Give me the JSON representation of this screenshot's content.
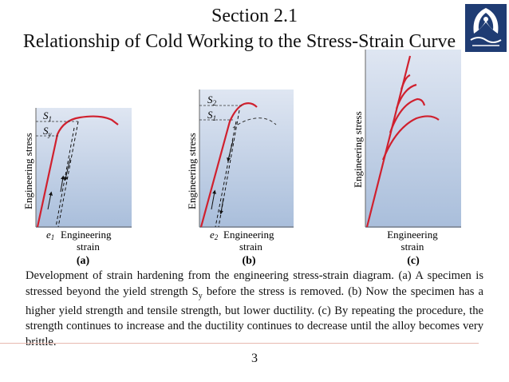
{
  "header": {
    "section": "Section 2.1",
    "title": "Relationship of Cold Working to the Stress-Strain Curve"
  },
  "logo": {
    "icon": "university-seal-icon",
    "color": "#1f3c73"
  },
  "figures": {
    "a": {
      "ylabel": "Engineering stress",
      "xlabel_line1": "Engineering",
      "xlabel_line2": "strain",
      "e_label": "e",
      "e_sub": "1",
      "s1_label": "S",
      "s1_sub": "1",
      "sy_label": "S",
      "sy_sub": "y",
      "panel_label": "(a)"
    },
    "b": {
      "ylabel": "Engineering stress",
      "xlabel_line1": "Engineering",
      "xlabel_line2": "strain",
      "e_label": "e",
      "e_sub": "2",
      "s2_label": "S",
      "s2_sub": "2",
      "s1_label": "S",
      "s1_sub": "1",
      "panel_label": "(b)"
    },
    "c": {
      "ylabel": "Engineering stress",
      "xlabel_line1": "Engineering",
      "xlabel_line2": "strain",
      "panel_label": "(c)"
    },
    "colors": {
      "curve": "#d0202e",
      "background_top": "#dfe6f2",
      "background_bottom": "#a9bedb"
    }
  },
  "caption": {
    "part1": "Development of strain hardening from the engineering stress-strain diagram. (a) A specimen is stressed beyond the yield strength S",
    "sub": "y",
    "part2": " before the stress is removed. (b) Now the specimen has a higher yield strength and tensile strength, but lower ductility. (c) By repeating the procedure, the strength continues to increase and the ductility continues to decrease until the alloy becomes very brittle."
  },
  "page_number": "3"
}
